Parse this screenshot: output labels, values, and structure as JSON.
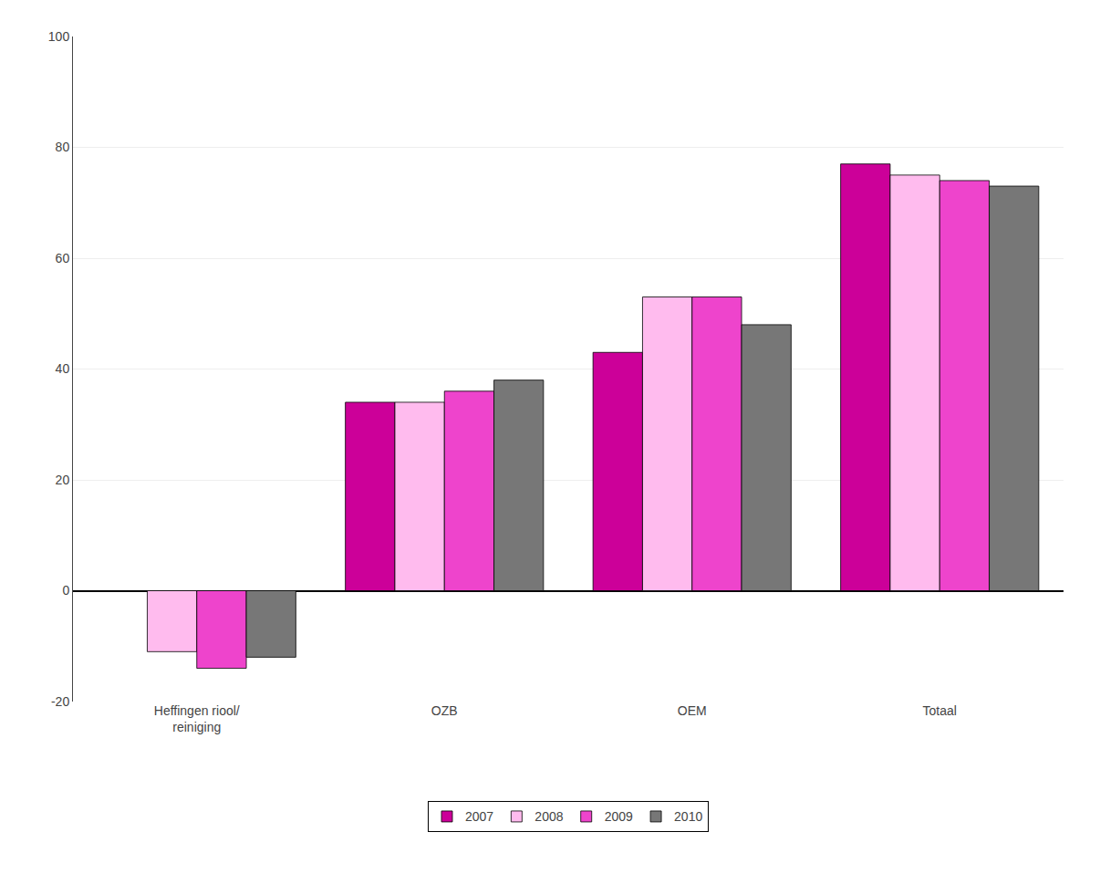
{
  "chart_data": {
    "type": "bar",
    "categories": [
      "Heffingen riool/\nreiniging",
      "OZB",
      "OEM",
      "Totaal"
    ],
    "series": [
      {
        "name": "2007",
        "color": "#CC0099",
        "values": [
          0,
          34,
          43,
          77
        ]
      },
      {
        "name": "2008",
        "color": "#FFBBEE",
        "values": [
          -11,
          34,
          53,
          75
        ]
      },
      {
        "name": "2009",
        "color": "#EE44CC",
        "values": [
          -14,
          36,
          53,
          74
        ]
      },
      {
        "name": "2010",
        "color": "#777777",
        "values": [
          -12,
          38,
          48,
          73
        ]
      }
    ],
    "ylim": [
      -20,
      100
    ],
    "yticks": [
      -20,
      0,
      20,
      40,
      60,
      80,
      100
    ],
    "grid": true,
    "legend": "bottom"
  }
}
